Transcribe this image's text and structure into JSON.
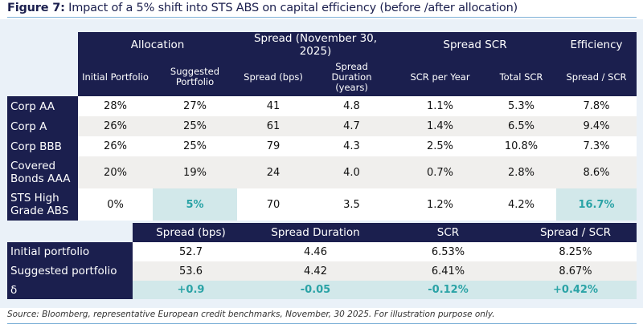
{
  "title": {
    "prefix": "Figure 7:",
    "text": "Impact of a 5% shift into STS ABS on capital efficiency (before /after allocation)"
  },
  "top_table": {
    "groups": [
      "Allocation",
      "Spread (November 30, 2025)",
      "Spread SCR",
      "Efficiency"
    ],
    "columns": [
      "Initial Portfolio",
      "Suggested Portfolio",
      "Spread (bps)",
      "Spread Duration (years)",
      "SCR per Year",
      "Total SCR",
      "Spread / SCR"
    ],
    "rows": [
      {
        "label": "Corp AA",
        "values": [
          "28%",
          "27%",
          "41",
          "4.8",
          "1.1%",
          "5.3%",
          "7.8%"
        ]
      },
      {
        "label": "Corp A",
        "values": [
          "26%",
          "25%",
          "61",
          "4.7",
          "1.4%",
          "6.5%",
          "9.4%"
        ]
      },
      {
        "label": "Corp BBB",
        "values": [
          "26%",
          "25%",
          "79",
          "4.3",
          "2.5%",
          "10.8%",
          "7.3%"
        ]
      },
      {
        "label": "Covered Bonds AAA",
        "values": [
          "20%",
          "19%",
          "24",
          "4.0",
          "0.7%",
          "2.8%",
          "8.6%"
        ]
      },
      {
        "label": "STS High Grade ABS",
        "values": [
          "0%",
          "5%",
          "70",
          "3.5",
          "1.2%",
          "4.2%",
          "16.7%"
        ]
      }
    ]
  },
  "bottom_table": {
    "columns": [
      "Spread (bps)",
      "Spread Duration",
      "SCR",
      "Spread / SCR"
    ],
    "rows": [
      {
        "label": "Initial portfolio",
        "values": [
          "52.7",
          "4.46",
          "6.53%",
          "8.25%"
        ]
      },
      {
        "label": "Suggested portfolio",
        "values": [
          "53.6",
          "4.42",
          "6.41%",
          "8.67%"
        ]
      },
      {
        "label": "δ",
        "values": [
          "+0.9",
          "-0.05",
          "-0.12%",
          "+0.42%"
        ]
      }
    ]
  },
  "source": "Source: Bloomberg, representative European credit benchmarks, November, 30 2025. For illustration purpose only.",
  "colors": {
    "navy": "#1b1f4e",
    "highlight_bg": "#d2e8ea",
    "highlight_text": "#2aa3a6",
    "panel": "#eaf1f8"
  }
}
